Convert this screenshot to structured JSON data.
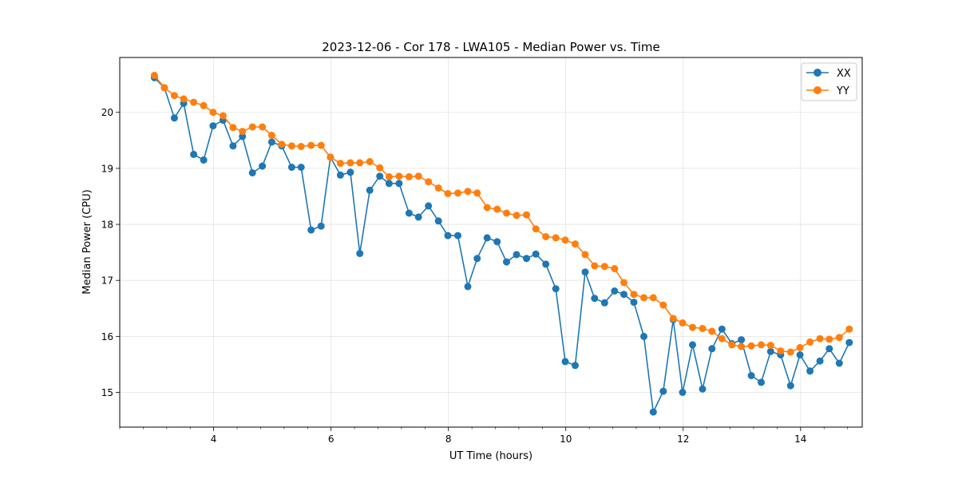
{
  "chart_data": {
    "type": "line",
    "title": "2023-12-06 - Cor 178 - LWA105 - Median Power vs. Time",
    "xlabel": "UT Time (hours)",
    "ylabel": "Median Power (CPU)",
    "xlim": [
      2.4,
      15.05
    ],
    "ylim": [
      14.38,
      20.98
    ],
    "xticks": [
      4,
      6,
      8,
      10,
      12,
      14
    ],
    "xtick_labels": [
      "4",
      "6",
      "8",
      "10",
      "12",
      "14"
    ],
    "yticks": [
      15,
      16,
      17,
      18,
      19,
      20
    ],
    "ytick_labels": [
      "15",
      "16",
      "17",
      "18",
      "19",
      "20"
    ],
    "grid": true,
    "legend_position": "top-right",
    "x": [
      2.99,
      3.16,
      3.33,
      3.49,
      3.66,
      3.83,
      3.99,
      4.16,
      4.33,
      4.49,
      4.66,
      4.83,
      4.99,
      5.16,
      5.33,
      5.49,
      5.66,
      5.83,
      5.99,
      6.16,
      6.33,
      6.49,
      6.66,
      6.83,
      6.99,
      7.16,
      7.33,
      7.49,
      7.66,
      7.83,
      7.99,
      8.16,
      8.33,
      8.49,
      8.66,
      8.83,
      8.99,
      9.16,
      9.33,
      9.49,
      9.66,
      9.83,
      9.99,
      10.16,
      10.33,
      10.49,
      10.66,
      10.83,
      10.99,
      11.16,
      11.33,
      11.49,
      11.66,
      11.83,
      11.99,
      12.16,
      12.33,
      12.49,
      12.66,
      12.83,
      12.99,
      13.16,
      13.33,
      13.49,
      13.66,
      13.83,
      13.99,
      14.16,
      14.33,
      14.49,
      14.66,
      14.83
    ],
    "series": [
      {
        "name": "XX",
        "color": "#1f77b4",
        "values": [
          20.62,
          20.44,
          19.9,
          20.16,
          19.25,
          19.15,
          19.76,
          19.86,
          19.4,
          19.57,
          18.92,
          19.04,
          19.47,
          19.4,
          19.02,
          19.02,
          17.9,
          17.97,
          19.2,
          18.88,
          18.93,
          17.48,
          18.61,
          18.86,
          18.73,
          18.73,
          18.2,
          18.13,
          18.33,
          18.06,
          17.8,
          17.8,
          16.89,
          17.39,
          17.76,
          17.69,
          17.33,
          17.46,
          17.39,
          17.47,
          17.29,
          16.85,
          15.55,
          15.48,
          17.15,
          16.68,
          16.6,
          16.81,
          16.75,
          16.61,
          16.0,
          14.65,
          15.02,
          16.3,
          15.0,
          15.85,
          15.06,
          15.78,
          16.13,
          15.87,
          15.94,
          15.3,
          15.18,
          15.73,
          15.67,
          15.12,
          15.67,
          15.38,
          15.56,
          15.78,
          15.52,
          15.89
        ]
      },
      {
        "name": "YY",
        "color": "#ff7f0e",
        "values": [
          20.66,
          20.44,
          20.3,
          20.24,
          20.18,
          20.12,
          20.0,
          19.94,
          19.73,
          19.66,
          19.74,
          19.74,
          19.59,
          19.43,
          19.4,
          19.39,
          19.41,
          19.41,
          19.2,
          19.09,
          19.1,
          19.1,
          19.12,
          19.01,
          18.85,
          18.86,
          18.85,
          18.86,
          18.76,
          18.65,
          18.55,
          18.56,
          18.59,
          18.56,
          18.3,
          18.27,
          18.2,
          18.16,
          18.17,
          17.92,
          17.78,
          17.76,
          17.72,
          17.65,
          17.46,
          17.26,
          17.25,
          17.21,
          16.96,
          16.75,
          16.69,
          16.69,
          16.56,
          16.32,
          16.24,
          16.16,
          16.14,
          16.09,
          15.96,
          15.85,
          15.82,
          15.83,
          15.85,
          15.84,
          15.74,
          15.72,
          15.8,
          15.9,
          15.96,
          15.95,
          15.98,
          16.13
        ]
      }
    ]
  }
}
